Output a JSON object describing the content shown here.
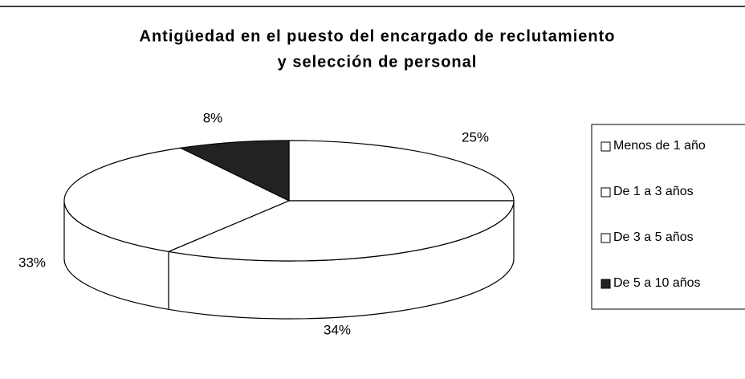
{
  "chart_data": {
    "type": "pie",
    "title": [
      "Antigüedad en el puesto del encargado de reclutamiento",
      "y selección de personal"
    ],
    "categories": [
      "Menos de 1 año",
      "De 1 a 3 años",
      "De 3 a 5 años",
      "De 5 a 10 años"
    ],
    "values": [
      25,
      34,
      33,
      8
    ],
    "value_labels": [
      "25%",
      "34%",
      "33%",
      "8%"
    ],
    "colors": [
      "#ffffff",
      "#ffffff",
      "#ffffff",
      "#222222"
    ],
    "legend": "right"
  }
}
